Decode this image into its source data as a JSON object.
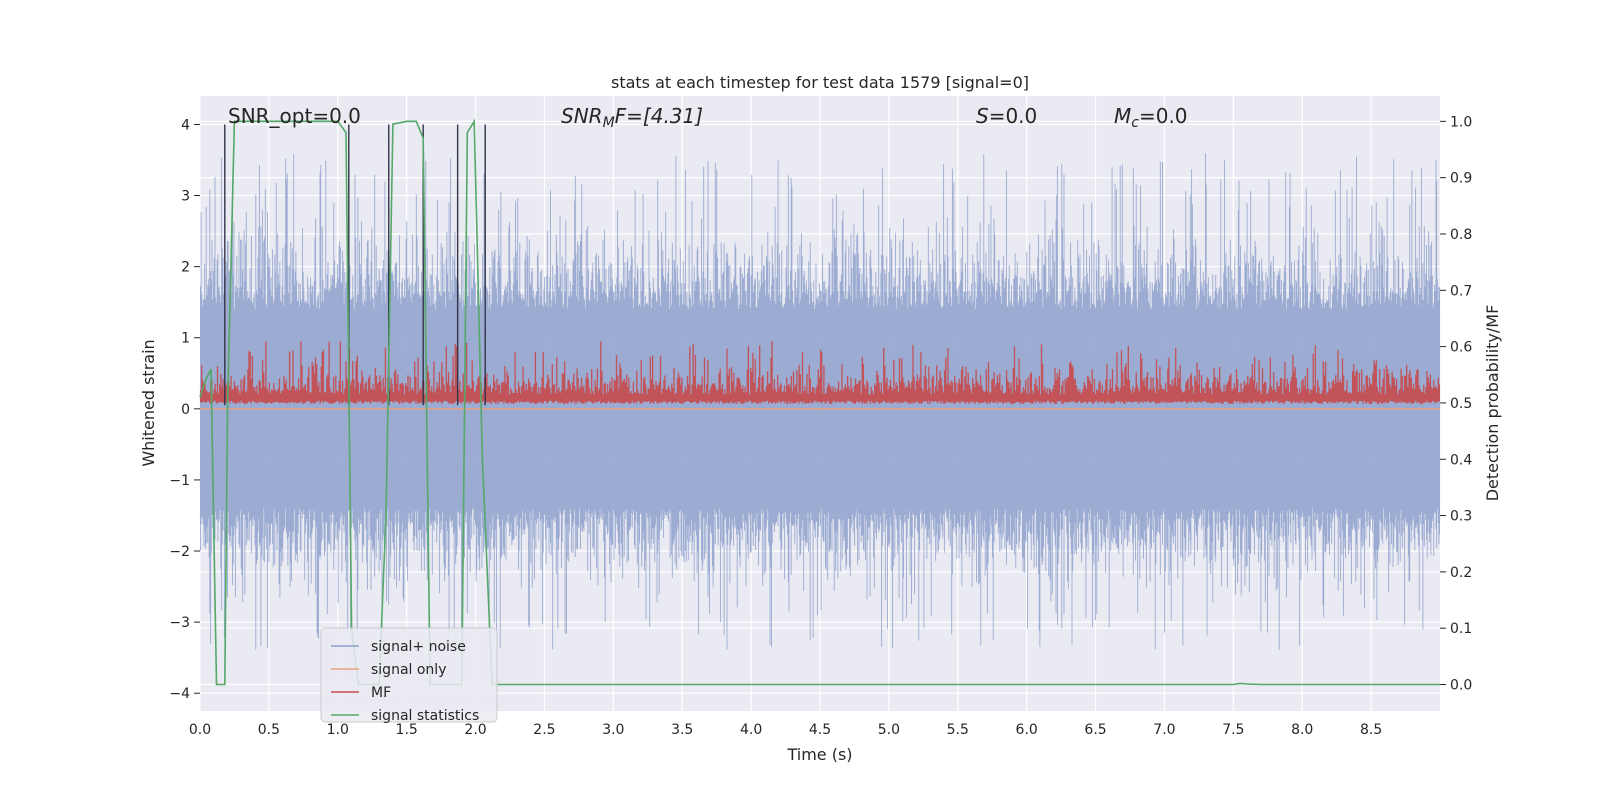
{
  "chart_data": {
    "type": "line",
    "title": "stats at each timestep for test data 1579 [signal=0]",
    "xlabel": "Time (s)",
    "ylabel": "Whitened strain",
    "y2label": "Detection probability/MF",
    "xlim": [
      0,
      9.0
    ],
    "ylim": [
      -4.25,
      4.4
    ],
    "y2lim": [
      -0.047,
      1.045
    ],
    "xticks": [
      "0.0",
      "0.5",
      "1.0",
      "1.5",
      "2.0",
      "2.5",
      "3.0",
      "3.5",
      "4.0",
      "4.5",
      "5.0",
      "5.5",
      "6.0",
      "6.5",
      "7.0",
      "7.5",
      "8.0",
      "8.5"
    ],
    "yticks": [
      "4",
      "3",
      "2",
      "1",
      "0",
      "−1",
      "−2",
      "−3",
      "−4"
    ],
    "y2ticks": [
      "1.0",
      "0.9",
      "0.8",
      "0.7",
      "0.6",
      "0.5",
      "0.4",
      "0.3",
      "0.2",
      "0.1",
      "0.0"
    ],
    "grid": true,
    "legend_placement": "lower-left",
    "annotations": {
      "snr_opt": "SNR_opt=0.0",
      "snr_mf_pre": "SNR",
      "snr_mf_sub": "M",
      "snr_mf_post": "F=[4.31]",
      "s_label": "S",
      "s_value": "=0.0",
      "mc_label": "M",
      "mc_sub": "c",
      "mc_value": "=0.0"
    },
    "vertical_markers_x": [
      0.18,
      1.08,
      1.37,
      1.62,
      1.87,
      2.07
    ],
    "series": [
      {
        "name": "signal+ noise",
        "color": "#8da0cb",
        "description": "noisy whitened strain, approx uniform amplitude envelope ~+/-2 with spikes to +/-3.9"
      },
      {
        "name": "signal only",
        "color": "#e8a07f",
        "values_note": "flat at 0"
      },
      {
        "name": "MF",
        "color": "#c44e52",
        "axis": "right",
        "description": "matched filter output fluctuating between 0.5 and ~0.6"
      },
      {
        "name": "signal statistics",
        "color": "#55a868",
        "axis": "right",
        "x": [
          0.0,
          0.04,
          0.08,
          0.12,
          0.18,
          0.2,
          0.25,
          0.3,
          0.5,
          0.9,
          1.0,
          1.06,
          1.1,
          1.15,
          1.3,
          1.35,
          1.4,
          1.5,
          1.57,
          1.62,
          1.67,
          1.8,
          1.85,
          1.9,
          1.94,
          1.99,
          2.05,
          2.12,
          2.2,
          3.0,
          5.0,
          7.5,
          7.55,
          7.6,
          7.7,
          8.5,
          9.0
        ],
        "y": [
          0.51,
          0.54,
          0.56,
          0.0,
          0.0,
          0.5,
          1.0,
          1.0,
          1.0,
          1.0,
          1.0,
          0.98,
          0.1,
          0.0,
          0.0,
          0.3,
          0.995,
          1.0,
          1.0,
          0.97,
          0.0,
          0.0,
          0.0,
          0.0,
          0.98,
          1.0,
          0.4,
          0.0,
          0.0,
          0.0,
          0.0,
          0.0,
          0.002,
          0.001,
          0.0,
          0.0,
          0.0
        ]
      }
    ]
  },
  "legend": [
    {
      "label": "signal+ noise",
      "color": "#8da0cb"
    },
    {
      "label": "signal only",
      "color": "#e8a07f"
    },
    {
      "label": "MF",
      "color": "#c44e52"
    },
    {
      "label": "signal statistics",
      "color": "#55a868"
    }
  ]
}
